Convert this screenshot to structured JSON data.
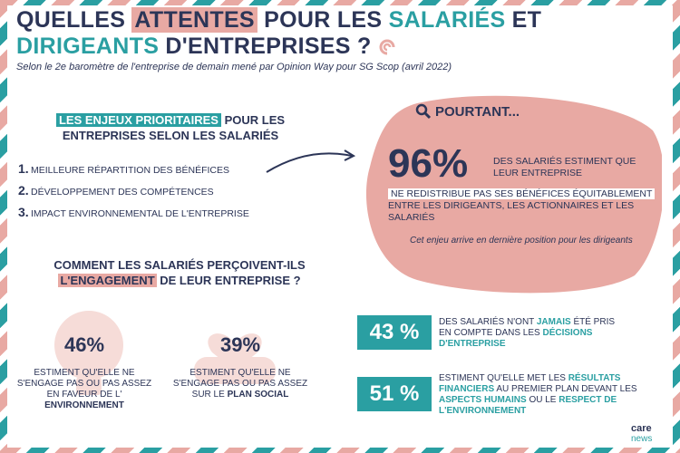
{
  "title": {
    "part1": "QUELLES ",
    "part2": "ATTENTES",
    "part3": " POUR LES ",
    "part4": "SALARIÉS",
    "part5": " ET",
    "part6": "DIRIGEANTS",
    "part7": " D'ENTREPRISES ?"
  },
  "subtitle": "Selon le 2e baromètre de l'entreprise de demain mené par Opinion Way pour SG Scop (avril 2022)",
  "enjeux": {
    "highlight": "LES ENJEUX PRIORITAIRES",
    "rest1": " POUR LES",
    "rest2": "ENTREPRISES SELON LES SALARIÉS",
    "items": [
      {
        "num": "1.",
        "label": "MEILLEURE RÉPARTITION DES BÉNÉFICES"
      },
      {
        "num": "2.",
        "label": "DÉVELOPPEMENT DES COMPÉTENCES"
      },
      {
        "num": "3.",
        "label": "IMPACT ENVIRONNEMENTAL DE L'ENTREPRISE"
      }
    ]
  },
  "pourtant": {
    "label": "POURTANT...",
    "big": "96%",
    "big_text": "DES SALARIÉS ESTIMENT QUE LEUR ENTREPRISE",
    "highlight": "NE REDISTRIBUE PAS SES BÉNÉFICES ÉQUITABLEMENT",
    "rest": "ENTRE LES DIRIGEANTS, LES ACTIONNAIRES ET LES SALARIÉS",
    "note": "Cet enjeu arrive en dernière position pour les dirigeants"
  },
  "engagement": {
    "line1": "COMMENT LES SALARIÉS PERÇOIVENT-ILS",
    "highlight": "L'ENGAGEMENT",
    "line2": " DE LEUR ENTREPRISE ?",
    "stats": [
      {
        "pct": "46%",
        "text": "ESTIMENT QU'ELLE NE S'ENGAGE PAS OU PAS ASSEZ EN FAVEUR DE L' ",
        "bold": "ENVIRONNEMENT"
      },
      {
        "pct": "39%",
        "text": "ESTIMENT QU'ELLE NE S'ENGAGE PAS OU PAS ASSEZ SUR LE ",
        "bold": "PLAN SOCIAL"
      }
    ]
  },
  "decisions": {
    "pct": "43 %",
    "t1": "DES SALARIÉS N'ONT ",
    "b1": "JAMAIS",
    "t2": " ÉTÉ PRIS EN COMPTE DANS LES ",
    "b2": "DÉCISIONS D'ENTREPRISE"
  },
  "resultats": {
    "pct": "51 %",
    "t1": "ESTIMENT QU'ELLE MET LES ",
    "b1": "RÉSULTATS FINANCIERS",
    "t2": " AU PREMIER PLAN DEVANT LES ",
    "b2": "ASPECTS HUMAINS",
    "t3": " OU LE ",
    "b3": "RESPECT DE L'ENVIRONNEMENT"
  },
  "logo": {
    "care": "care",
    "news": "news"
  },
  "colors": {
    "navy": "#2c3557",
    "teal": "#2a9fa2",
    "pink": "#e8a9a3"
  }
}
